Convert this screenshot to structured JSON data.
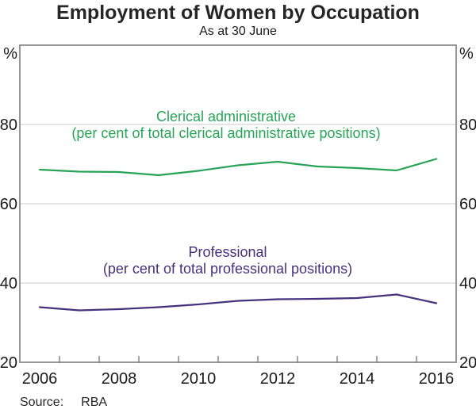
{
  "title": "Employment of Women by Occupation",
  "subtitle": "As at 30 June",
  "source": {
    "label": "Source:",
    "value": "RBA"
  },
  "axes": {
    "unit_label": "%",
    "y_tick_labels": [
      80,
      60,
      40,
      20
    ],
    "x_labels": [
      2006,
      2008,
      2010,
      2012,
      2014,
      2016
    ]
  },
  "annotations": {
    "clerical": {
      "title": "Clerical administrative",
      "subtitle": "(per cent of total clerical administrative positions)"
    },
    "professional": {
      "title": "Professional",
      "subtitle": "(per cent of total professional positions)"
    }
  },
  "colors": {
    "clerical_line": "#27a457",
    "professional_line": "#45317d",
    "grid": "#c9c9c9",
    "frame": "#7d7d7d",
    "text": "#1a1a1a"
  },
  "chart_data": {
    "type": "line",
    "title": "Employment of Women by Occupation",
    "subtitle": "As at 30 June",
    "x": [
      2006,
      2007,
      2008,
      2009,
      2010,
      2011,
      2012,
      2013,
      2014,
      2015,
      2016
    ],
    "series": [
      {
        "name": "Clerical administrative (per cent of total clerical administrative positions)",
        "color": "#27a457",
        "values": [
          68.6,
          68.1,
          68.0,
          67.2,
          68.3,
          69.7,
          70.6,
          69.4,
          69.0,
          68.4,
          71.3
        ]
      },
      {
        "name": "Professional (per cent of total professional positions)",
        "color": "#45317d",
        "values": [
          33.9,
          33.1,
          33.4,
          33.9,
          34.6,
          35.5,
          35.9,
          36.0,
          36.2,
          37.1,
          34.9
        ]
      }
    ],
    "xlabel": "",
    "ylabel_left": "%",
    "ylabel_right": "%",
    "ylim": [
      20,
      100
    ],
    "y_gridlines": [
      40,
      60,
      80
    ],
    "grid": true,
    "legend_position": "inline-annotations",
    "source": "RBA"
  }
}
